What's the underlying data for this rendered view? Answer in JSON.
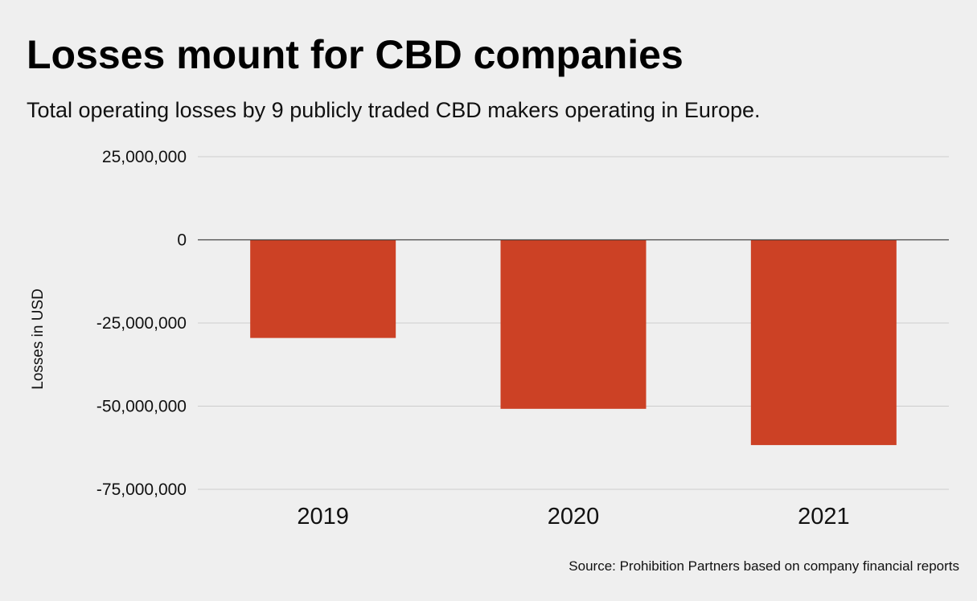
{
  "title": "Losses mount for CBD companies",
  "subtitle": "Total operating losses by 9 publicly traded CBD makers operating in Europe.",
  "source": "Source: Prohibition Partners based on company financial reports",
  "colors": {
    "bar": "#cc4125",
    "grid": "#cccccc",
    "zero_line": "#444444",
    "background": "#efefef"
  },
  "chart_data": {
    "type": "bar",
    "categories": [
      "2019",
      "2020",
      "2021"
    ],
    "values": [
      -29500000,
      -50800000,
      -61700000
    ],
    "ylabel": "Losses in USD",
    "xlabel": "",
    "ylim": [
      -75000000,
      25000000
    ],
    "yticks": [
      25000000,
      0,
      -25000000,
      -50000000,
      -75000000
    ],
    "ytick_labels": [
      "25,000,000",
      "0",
      "-25,000,000",
      "-50,000,000",
      "-75,000,000"
    ],
    "grid": true,
    "legend": "none"
  }
}
